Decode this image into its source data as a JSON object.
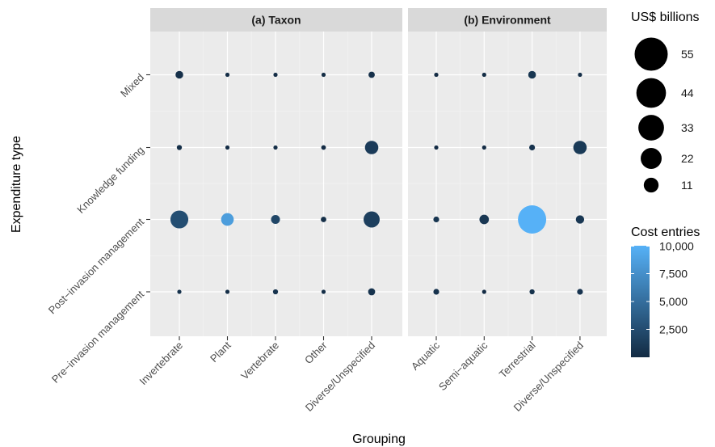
{
  "chart_data": {
    "type": "scatter",
    "facets": [
      "(a) Taxon",
      "(b) Environment"
    ],
    "xlabel": "Grouping",
    "ylabel": "Expenditure type",
    "y_categories": [
      "Pre−invasion management",
      "Post−invasion management",
      "Knowledge funding",
      "Mixed"
    ],
    "x_categories": [
      [
        "Invertebrate",
        "Plant",
        "Vertebrate",
        "Other",
        "Diverse/Unspecified"
      ],
      [
        "Aquatic",
        "Semi−aquatic",
        "Terrestrial",
        "Diverse/Unspecified"
      ]
    ],
    "size_legend": {
      "title": "US$ billions",
      "values": [
        55,
        44,
        33,
        22,
        11
      ],
      "labels": [
        "55",
        "44",
        "33",
        "22",
        "11"
      ]
    },
    "color_legend": {
      "title": "Cost entries",
      "min": 0,
      "max": 10000,
      "ticks": [
        10000,
        7500,
        5000,
        2500
      ],
      "labels": [
        "10,000",
        "7,500",
        "5,000",
        "2,500"
      ],
      "low_color": "#132B43",
      "high_color": "#56B1F7"
    },
    "points": [
      {
        "facet": 0,
        "x": "Invertebrate",
        "y": "Mixed",
        "cost": 3,
        "entries": 400
      },
      {
        "facet": 0,
        "x": "Plant",
        "y": "Mixed",
        "cost": 0.8,
        "entries": 200
      },
      {
        "facet": 0,
        "x": "Vertebrate",
        "y": "Mixed",
        "cost": 0.5,
        "entries": 150
      },
      {
        "facet": 0,
        "x": "Other",
        "y": "Mixed",
        "cost": 0.3,
        "entries": 50
      },
      {
        "facet": 0,
        "x": "Diverse/Unspecified",
        "y": "Mixed",
        "cost": 2,
        "entries": 400
      },
      {
        "facet": 0,
        "x": "Invertebrate",
        "y": "Knowledge funding",
        "cost": 1.3,
        "entries": 300
      },
      {
        "facet": 0,
        "x": "Plant",
        "y": "Knowledge funding",
        "cost": 0.4,
        "entries": 150
      },
      {
        "facet": 0,
        "x": "Vertebrate",
        "y": "Knowledge funding",
        "cost": 0.7,
        "entries": 300
      },
      {
        "facet": 0,
        "x": "Other",
        "y": "Knowledge funding",
        "cost": 1.1,
        "entries": 100
      },
      {
        "facet": 0,
        "x": "Diverse/Unspecified",
        "y": "Knowledge funding",
        "cost": 9,
        "entries": 1200
      },
      {
        "facet": 0,
        "x": "Invertebrate",
        "y": "Post−invasion management",
        "cost": 16,
        "entries": 2600
      },
      {
        "facet": 0,
        "x": "Plant",
        "y": "Post−invasion management",
        "cost": 8,
        "entries": 8500
      },
      {
        "facet": 0,
        "x": "Vertebrate",
        "y": "Post−invasion management",
        "cost": 4,
        "entries": 2000
      },
      {
        "facet": 0,
        "x": "Other",
        "y": "Post−invasion management",
        "cost": 1.5,
        "entries": 300
      },
      {
        "facet": 0,
        "x": "Diverse/Unspecified",
        "y": "Post−invasion management",
        "cost": 13,
        "entries": 1500
      },
      {
        "facet": 0,
        "x": "Invertebrate",
        "y": "Pre−invasion management",
        "cost": 0.7,
        "entries": 500
      },
      {
        "facet": 0,
        "x": "Plant",
        "y": "Pre−invasion management",
        "cost": 0.3,
        "entries": 300
      },
      {
        "facet": 0,
        "x": "Vertebrate",
        "y": "Pre−invasion management",
        "cost": 1.3,
        "entries": 600
      },
      {
        "facet": 0,
        "x": "Other",
        "y": "Pre−invasion management",
        "cost": 0.6,
        "entries": 200
      },
      {
        "facet": 0,
        "x": "Diverse/Unspecified",
        "y": "Pre−invasion management",
        "cost": 2.5,
        "entries": 600
      },
      {
        "facet": 1,
        "x": "Aquatic",
        "y": "Mixed",
        "cost": 0.9,
        "entries": 100
      },
      {
        "facet": 1,
        "x": "Semi−aquatic",
        "y": "Mixed",
        "cost": 0.5,
        "entries": 50
      },
      {
        "facet": 1,
        "x": "Terrestrial",
        "y": "Mixed",
        "cost": 3,
        "entries": 800
      },
      {
        "facet": 1,
        "x": "Diverse/Unspecified",
        "y": "Mixed",
        "cost": 0.7,
        "entries": 300
      },
      {
        "facet": 1,
        "x": "Aquatic",
        "y": "Knowledge funding",
        "cost": 0.3,
        "entries": 100
      },
      {
        "facet": 1,
        "x": "Semi−aquatic",
        "y": "Knowledge funding",
        "cost": 0.3,
        "entries": 100
      },
      {
        "facet": 1,
        "x": "Terrestrial",
        "y": "Knowledge funding",
        "cost": 1.7,
        "entries": 600
      },
      {
        "facet": 1,
        "x": "Diverse/Unspecified",
        "y": "Knowledge funding",
        "cost": 9,
        "entries": 1100
      },
      {
        "facet": 1,
        "x": "Aquatic",
        "y": "Post−invasion management",
        "cost": 1.7,
        "entries": 800
      },
      {
        "facet": 1,
        "x": "Semi−aquatic",
        "y": "Post−invasion management",
        "cost": 4.5,
        "entries": 900
      },
      {
        "facet": 1,
        "x": "Terrestrial",
        "y": "Post−invasion management",
        "cost": 40,
        "entries": 10500
      },
      {
        "facet": 1,
        "x": "Diverse/Unspecified",
        "y": "Post−invasion management",
        "cost": 3.5,
        "entries": 900
      },
      {
        "facet": 1,
        "x": "Aquatic",
        "y": "Pre−invasion management",
        "cost": 1.7,
        "entries": 600
      },
      {
        "facet": 1,
        "x": "Semi−aquatic",
        "y": "Pre−invasion management",
        "cost": 0.3,
        "entries": 100
      },
      {
        "facet": 1,
        "x": "Terrestrial",
        "y": "Pre−invasion management",
        "cost": 1.3,
        "entries": 500
      },
      {
        "facet": 1,
        "x": "Diverse/Unspecified",
        "y": "Pre−invasion management",
        "cost": 1.7,
        "entries": 700
      }
    ],
    "grid": true,
    "legend_position": "right"
  }
}
